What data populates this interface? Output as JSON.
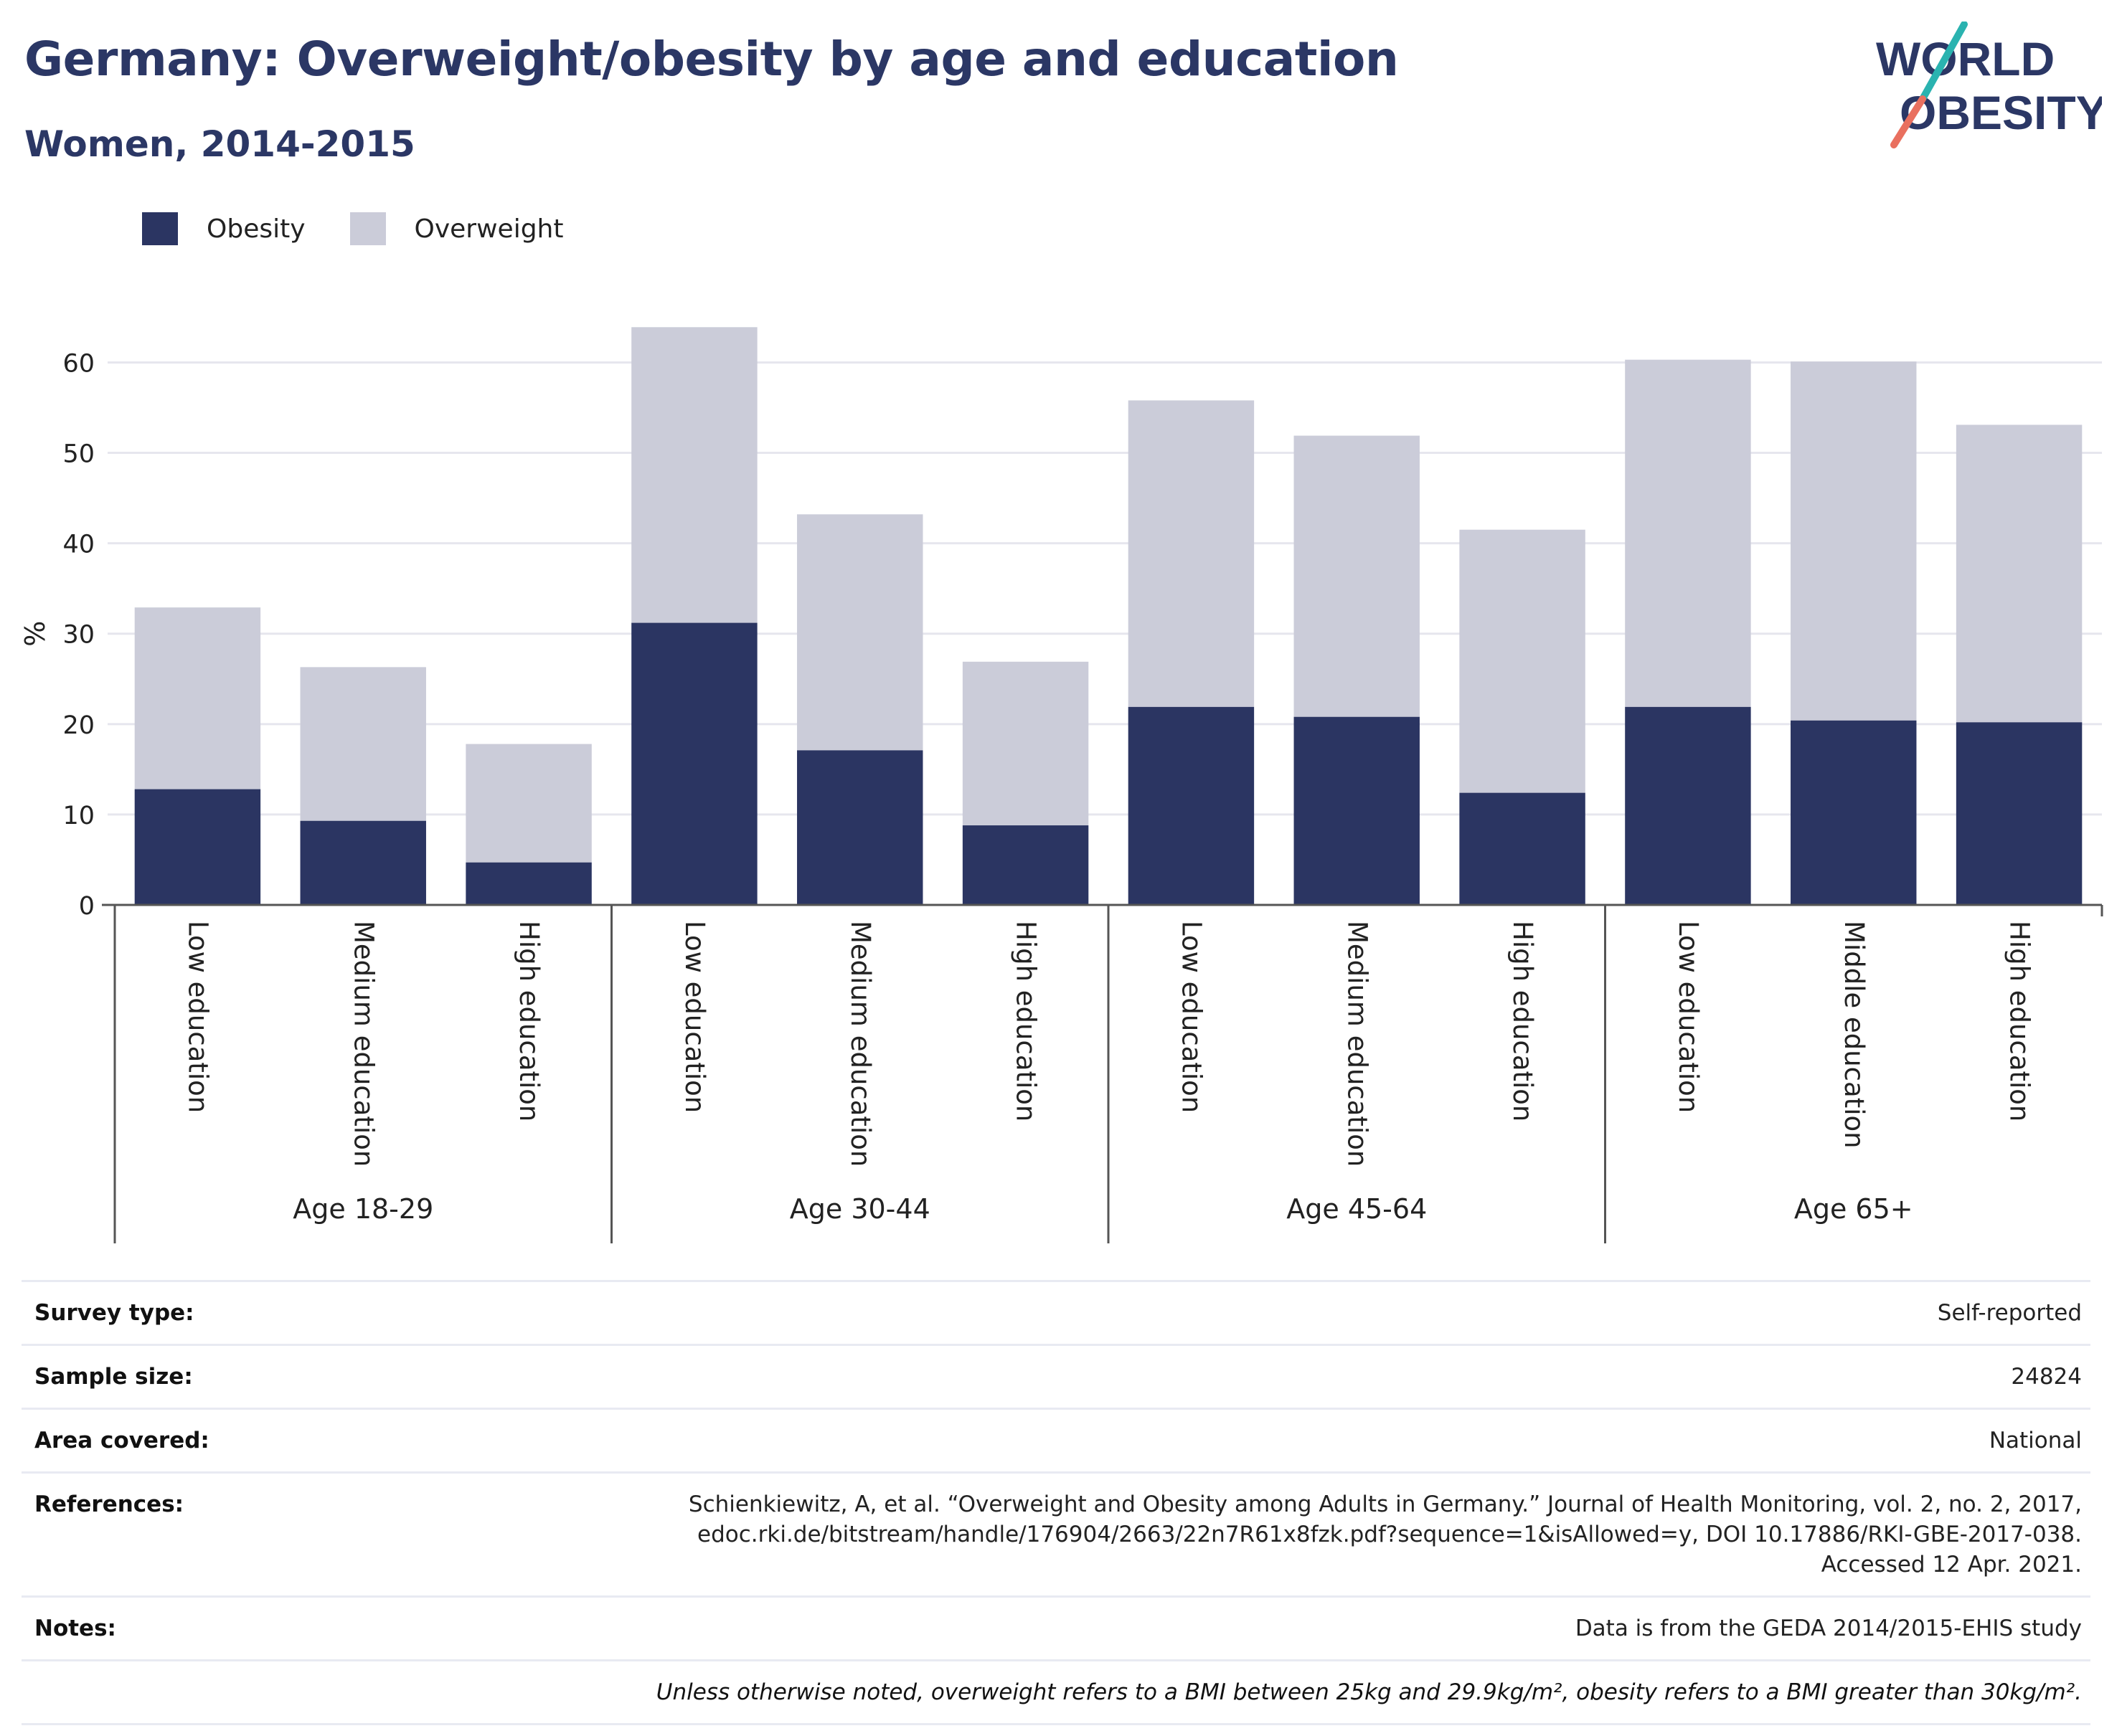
{
  "header": {
    "title": "Germany: Overweight/obesity by age and education",
    "subtitle": "Women, 2014-2015"
  },
  "logo": {
    "line1": "WORLD",
    "line2": "OBESITY"
  },
  "colors": {
    "obesity": "#2b3562",
    "overweight": "#cbccd9",
    "title": "#2b3765",
    "logo_teal": "#2ab3b0",
    "logo_coral": "#e9705f",
    "grid": "#e6e6ee",
    "axis": "#555555"
  },
  "legend": {
    "obesity": "Obesity",
    "overweight": "Overweight"
  },
  "chart_data": {
    "type": "bar",
    "stacked": true,
    "ylabel": "%",
    "ylim": [
      0,
      64
    ],
    "yticks": [
      0,
      10,
      20,
      30,
      40,
      50,
      60
    ],
    "grid": true,
    "legend_position": "top-left",
    "groups": [
      {
        "label": "Age 18-29",
        "categories": [
          "Low education",
          "Medium education",
          "High education"
        ]
      },
      {
        "label": "Age 30-44",
        "categories": [
          "Low education",
          "Medium education",
          "High education"
        ]
      },
      {
        "label": "Age 45-64",
        "categories": [
          "Low education",
          "Medium education",
          "High education"
        ]
      },
      {
        "label": "Age 65+",
        "categories": [
          "Low education",
          "Middle education",
          "High education"
        ]
      }
    ],
    "series": [
      {
        "name": "Obesity",
        "values": [
          12.8,
          9.3,
          4.7,
          31.2,
          17.1,
          8.8,
          21.9,
          20.8,
          12.4,
          21.9,
          20.4,
          20.2
        ]
      },
      {
        "name": "Overweight",
        "values": [
          20.1,
          17.0,
          13.1,
          32.7,
          26.1,
          18.1,
          33.9,
          31.1,
          29.1,
          38.4,
          39.7,
          32.9
        ]
      }
    ]
  },
  "info": {
    "rows": [
      {
        "key": "Survey type:",
        "value": "Self-reported"
      },
      {
        "key": "Sample size:",
        "value": "24824"
      },
      {
        "key": "Area covered:",
        "value": "National"
      },
      {
        "key": "References:",
        "lines": [
          "Schienkiewitz, A, et al. “Overweight and Obesity among Adults in Germany.” Journal of Health Monitoring, vol. 2, no. 2, 2017,",
          "edoc.rki.de/bitstream/handle/176904/2663/22n7R61x8fzk.pdf?sequence=1&isAllowed=y, DOI 10.17886/RKI-GBE-2017-038.",
          "Accessed 12 Apr. 2021."
        ]
      },
      {
        "key": "Notes:",
        "value": "Data is from the GEDA 2014/2015-EHIS study"
      }
    ],
    "disclaimer": "Unless otherwise noted, overweight refers to a BMI between 25kg and 29.9kg/m², obesity refers to a BMI greater than 30kg/m²."
  }
}
